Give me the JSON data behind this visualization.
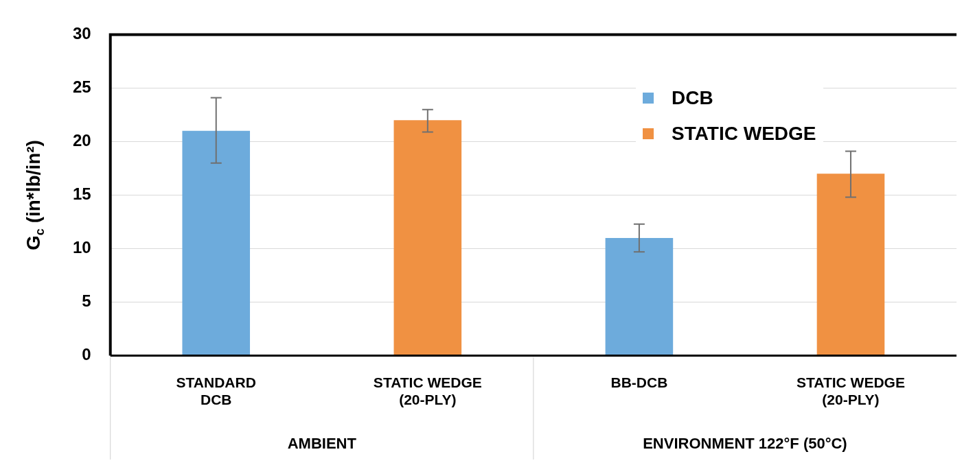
{
  "chart_data": {
    "type": "bar",
    "ylabel": "G$_{c}$ (in*lb/in²)",
    "categories": [
      "STANDARD\nDCB",
      "STATIC WEDGE\n(20-PLY)",
      "BB-DCB",
      "STATIC WEDGE\n(20-PLY)"
    ],
    "series": [
      {
        "name": "DCB",
        "color": "#6dabdc",
        "values": [
          21,
          null,
          11,
          null
        ],
        "errors": [
          [
            18,
            24.1
          ],
          null,
          [
            9.7,
            12.3
          ],
          null
        ]
      },
      {
        "name": "STATIC WEDGE",
        "color": "#f09142",
        "values": [
          null,
          22,
          null,
          17
        ],
        "errors": [
          null,
          [
            20.9,
            23
          ],
          null,
          [
            14.8,
            19.1
          ]
        ]
      }
    ],
    "ylim": [
      0,
      30
    ],
    "yticks": [
      0,
      5,
      10,
      15,
      20,
      25,
      30
    ],
    "grid": "y",
    "legend": "top right",
    "annotations": [
      "AMBIENT",
      "ENVIRONMENT 122°F (50°C)"
    ]
  }
}
